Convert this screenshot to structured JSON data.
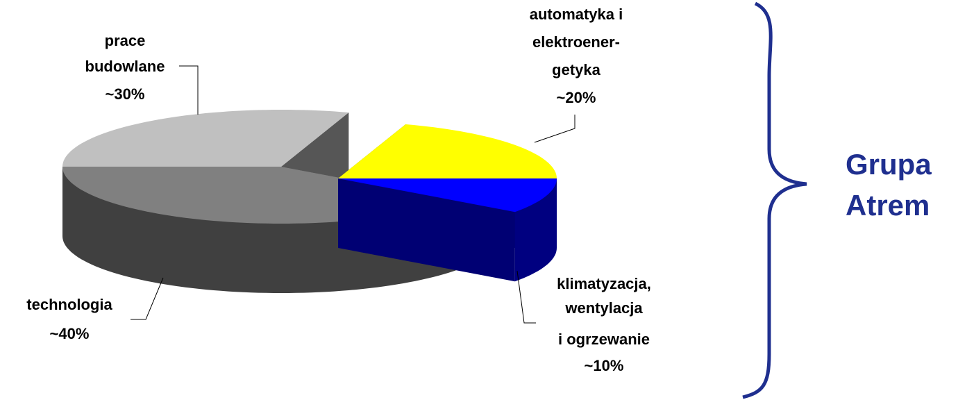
{
  "chart_data": {
    "type": "pie",
    "categories": [
      [
        "prace",
        "budowlane"
      ],
      [
        "automatyka i",
        "elektroener-",
        "getyka"
      ],
      [
        "klimatyzacja,",
        "wentylacja",
        "i ogrzewanie"
      ],
      [
        "technologia"
      ]
    ],
    "values": [
      30,
      20,
      10,
      40
    ],
    "value_labels": [
      "~30%",
      "~20%",
      "~10%",
      "~40%"
    ],
    "colors": [
      "#c0c0c0",
      "#ffff00",
      "#0000ff",
      "#808080"
    ],
    "exploded": [
      false,
      true,
      true,
      false
    ]
  },
  "annotation": [
    "Grupa",
    "Atrem"
  ]
}
